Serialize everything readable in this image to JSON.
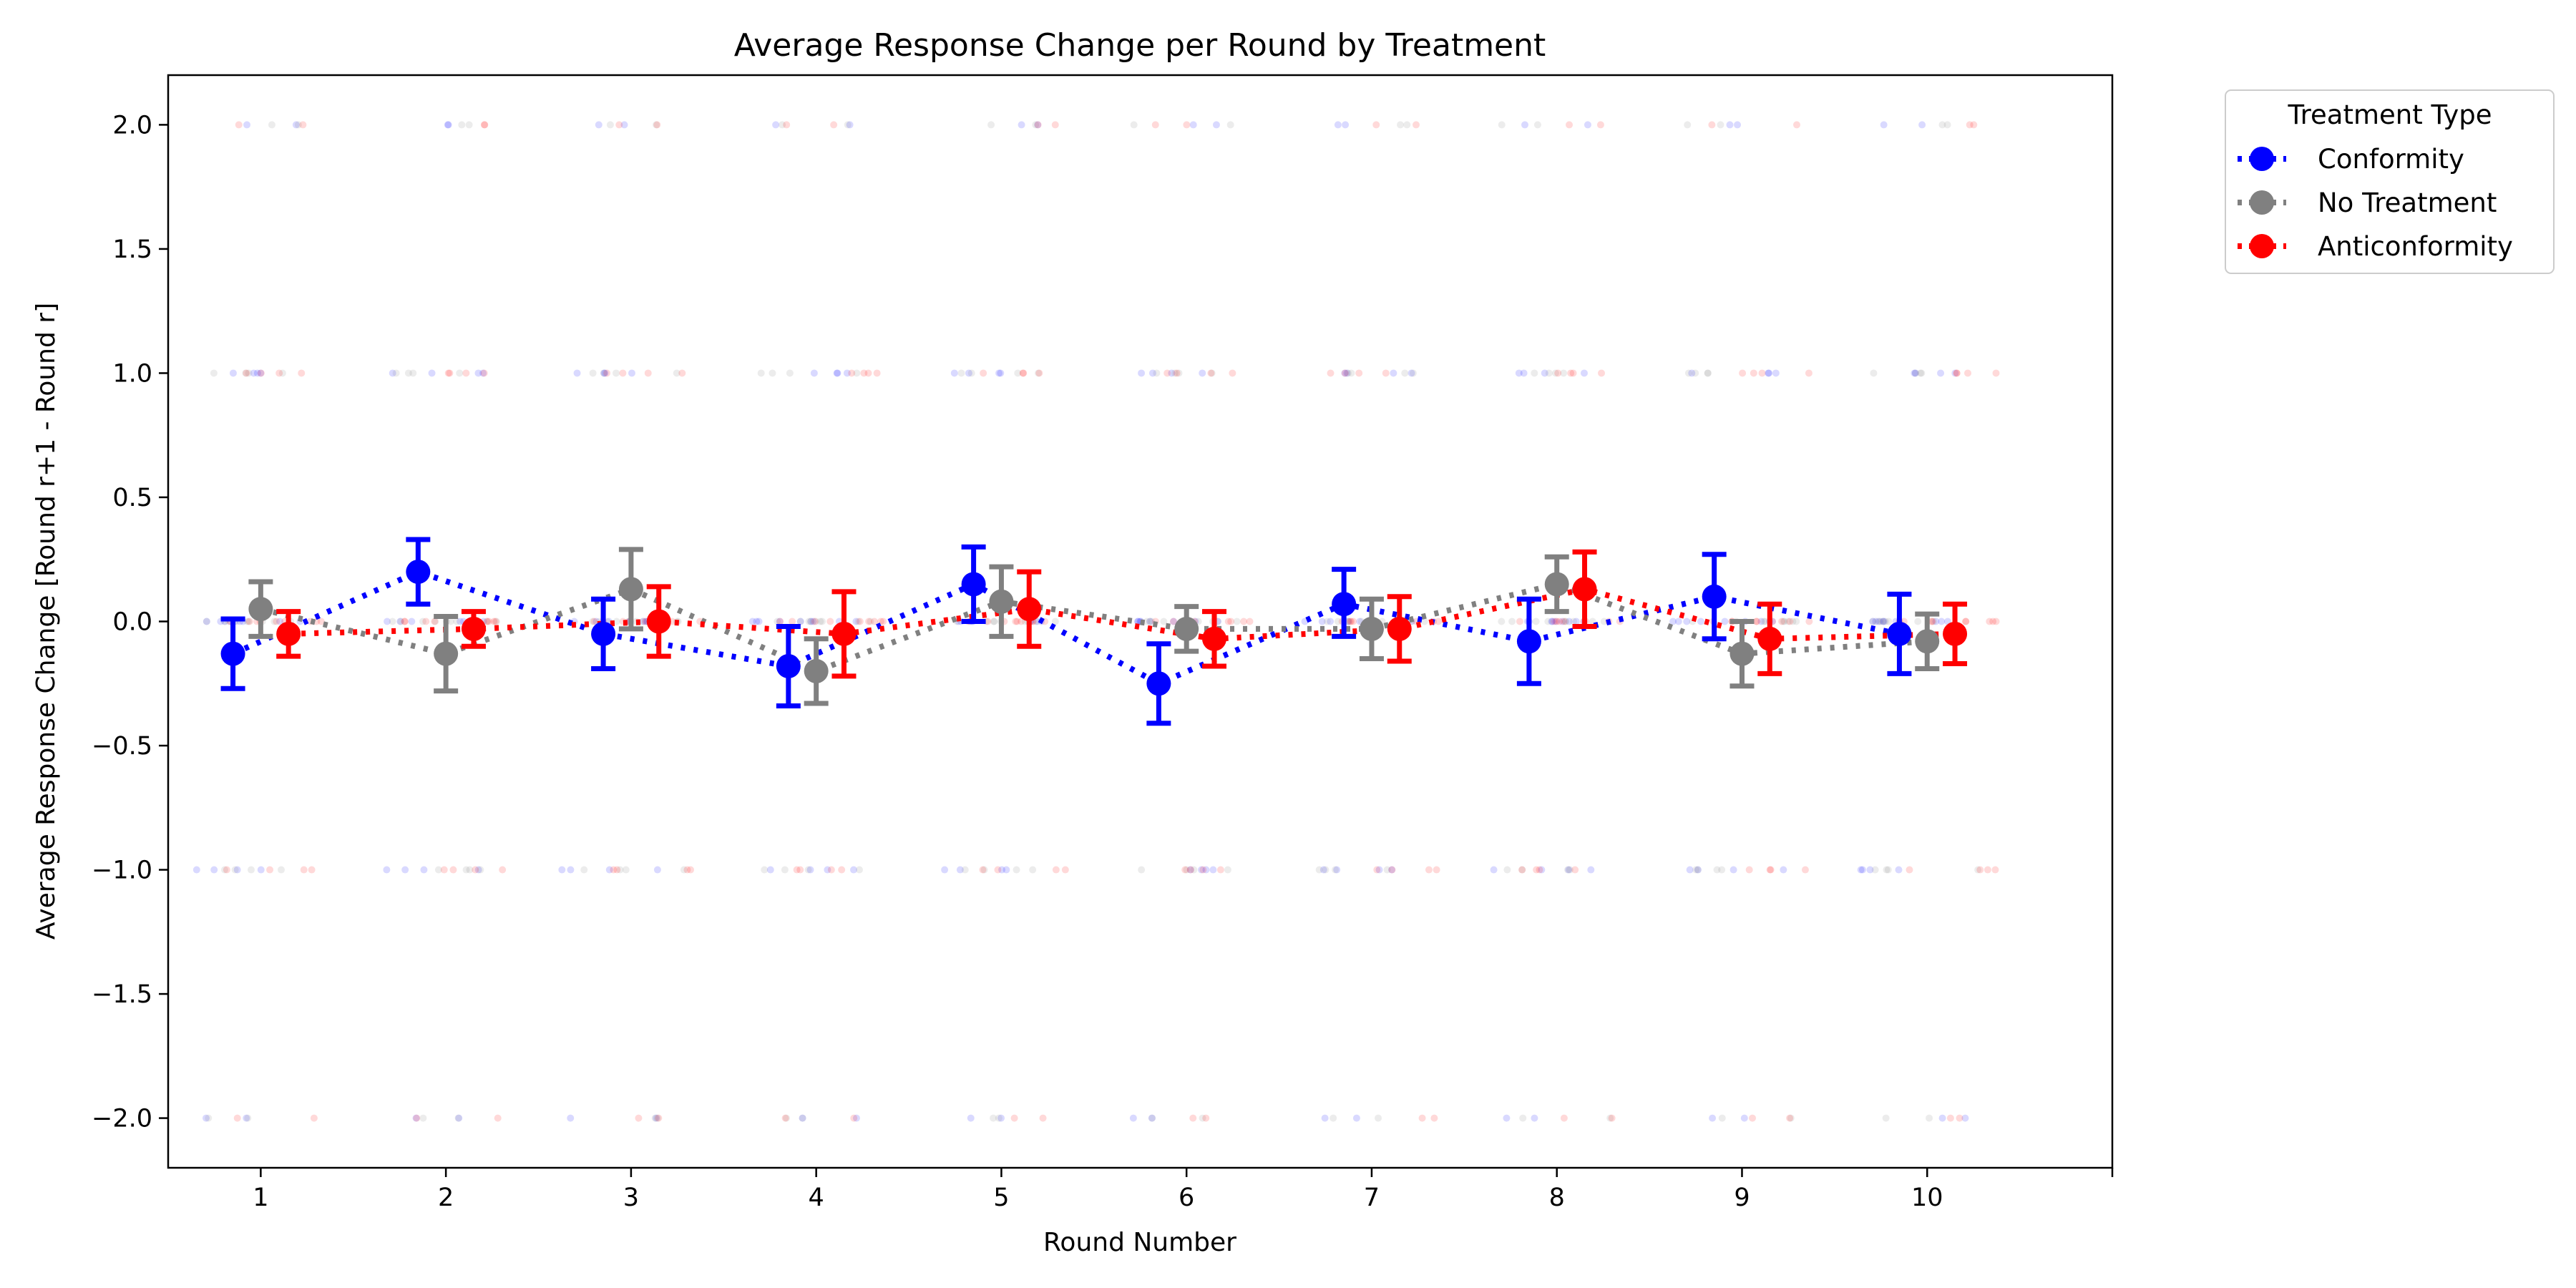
{
  "chart_data": {
    "type": "line",
    "title": "Average Response Change per Round by Treatment",
    "xlabel": "Round Number",
    "ylabel": "Average Response Change [Round r+1 - Round r]",
    "x": [
      1,
      2,
      3,
      4,
      5,
      6,
      7,
      8,
      9,
      10
    ],
    "x_tick_labels": [
      "1",
      "2",
      "3",
      "4",
      "5",
      "6",
      "7",
      "8",
      "9",
      "10"
    ],
    "y_ticks": [
      2.0,
      1.5,
      1.0,
      0.5,
      0.0,
      -0.5,
      -1.0,
      -1.5,
      -2.0
    ],
    "y_tick_labels": [
      "2.0",
      "1.5",
      "1.0",
      "0.5",
      "0.0",
      "−0.5",
      "−1.0",
      "−1.5",
      "−2.0"
    ],
    "xlim": [
      0.5,
      11.0
    ],
    "ylim": [
      -2.2,
      2.2
    ],
    "grid": false,
    "legend": {
      "title": "Treatment Type",
      "placement": "outside upper right"
    },
    "series": [
      {
        "name": "Conformity",
        "color": "#0000ff",
        "offset": -0.15,
        "values": [
          -0.13,
          0.2,
          -0.05,
          -0.18,
          0.15,
          -0.25,
          0.07,
          -0.08,
          0.1,
          -0.05
        ],
        "error_low": [
          -0.27,
          0.07,
          -0.19,
          -0.34,
          0.0,
          -0.41,
          -0.06,
          -0.25,
          -0.07,
          -0.21
        ],
        "error_high": [
          0.01,
          0.33,
          0.09,
          -0.02,
          0.3,
          -0.09,
          0.21,
          0.09,
          0.27,
          0.11
        ]
      },
      {
        "name": "No Treatment",
        "color": "#808080",
        "offset": 0.0,
        "values": [
          0.05,
          -0.13,
          0.13,
          -0.2,
          0.08,
          -0.03,
          -0.03,
          0.15,
          -0.13,
          -0.08
        ],
        "error_low": [
          -0.06,
          -0.28,
          -0.03,
          -0.33,
          -0.06,
          -0.12,
          -0.15,
          0.04,
          -0.26,
          -0.19
        ],
        "error_high": [
          0.16,
          0.02,
          0.29,
          -0.07,
          0.22,
          0.06,
          0.09,
          0.26,
          0.0,
          0.03
        ]
      },
      {
        "name": "Anticonformity",
        "color": "#ff0000",
        "offset": 0.15,
        "values": [
          -0.05,
          -0.03,
          0.0,
          -0.05,
          0.05,
          -0.07,
          -0.03,
          0.13,
          -0.07,
          -0.05
        ],
        "error_low": [
          -0.14,
          -0.1,
          -0.14,
          -0.22,
          -0.1,
          -0.18,
          -0.16,
          -0.02,
          -0.21,
          -0.17
        ],
        "error_high": [
          0.04,
          0.04,
          0.14,
          0.12,
          0.2,
          0.04,
          0.1,
          0.28,
          0.07,
          0.07
        ]
      }
    ],
    "raw_points": {
      "y_levels": [
        2,
        1,
        0,
        -1,
        -2
      ],
      "jitter_range": [
        -0.3,
        0.3
      ],
      "alpha": 0.15
    }
  }
}
